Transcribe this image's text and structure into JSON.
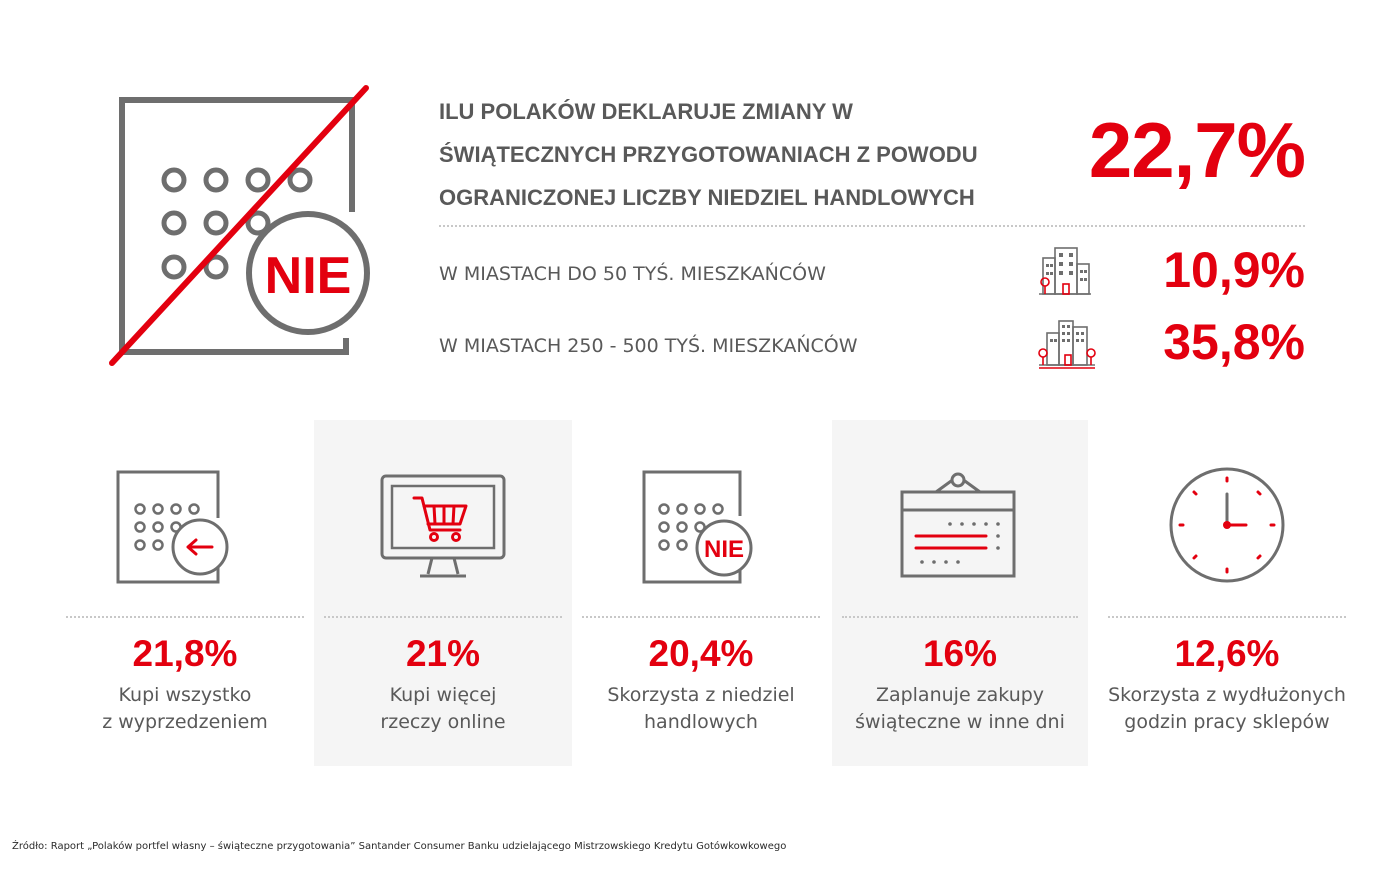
{
  "headline": {
    "lines": [
      "ILU POLAKÓW DEKLARUJE ZMIANY W",
      "ŚWIĄTECZNYCH PRZYGOTOWANIACH Z POWODU",
      "OGRANICZONEJ LICZBY NIEDZIEL HANDLOWYCH"
    ],
    "value": "22,7%"
  },
  "hero_icon": {
    "name": "calendar-crossed-icon",
    "badge": "NIE"
  },
  "cities": [
    {
      "label": "W MIASTACH DO 50 TYŚ. MIESZKAŃCÓW",
      "value": "10,9%",
      "icon": "small-town-icon"
    },
    {
      "label": "W MIASTACH 250 - 500 TYŚ. MIESZKAŃCÓW",
      "value": "35,8%",
      "icon": "big-city-icon"
    }
  ],
  "stats": [
    {
      "value": "21,8%",
      "desc_lines": [
        "Kupi wszystko",
        "z wyprzedzeniem"
      ],
      "icon": "calendar-back-arrow-icon"
    },
    {
      "value": "21%",
      "desc_lines": [
        "Kupi więcej",
        "rzeczy online"
      ],
      "icon": "monitor-cart-icon"
    },
    {
      "value": "20,4%",
      "desc_lines": [
        "Skorzysta z niedziel",
        "handlowych"
      ],
      "icon": "calendar-nie-icon",
      "badge": "NIE"
    },
    {
      "value": "16%",
      "desc_lines": [
        "Zaplanuje zakupy",
        "świąteczne w inne dni"
      ],
      "icon": "hanging-calendar-icon"
    },
    {
      "value": "12,6%",
      "desc_lines": [
        "Skorzysta z wydłużonych",
        "godzin pracy sklepów"
      ],
      "icon": "clock-icon"
    }
  ],
  "source": "Źródło: Raport „Polaków portfel własny – świąteczne przygotowania” Santander Consumer Banku udzielającego Mistrzowskiego Kredytu Gotówkowkowego",
  "colors": {
    "accent": "#e3000f",
    "text": "#595959",
    "icon": "#6e6e6e",
    "panel": "#f5f5f5"
  }
}
